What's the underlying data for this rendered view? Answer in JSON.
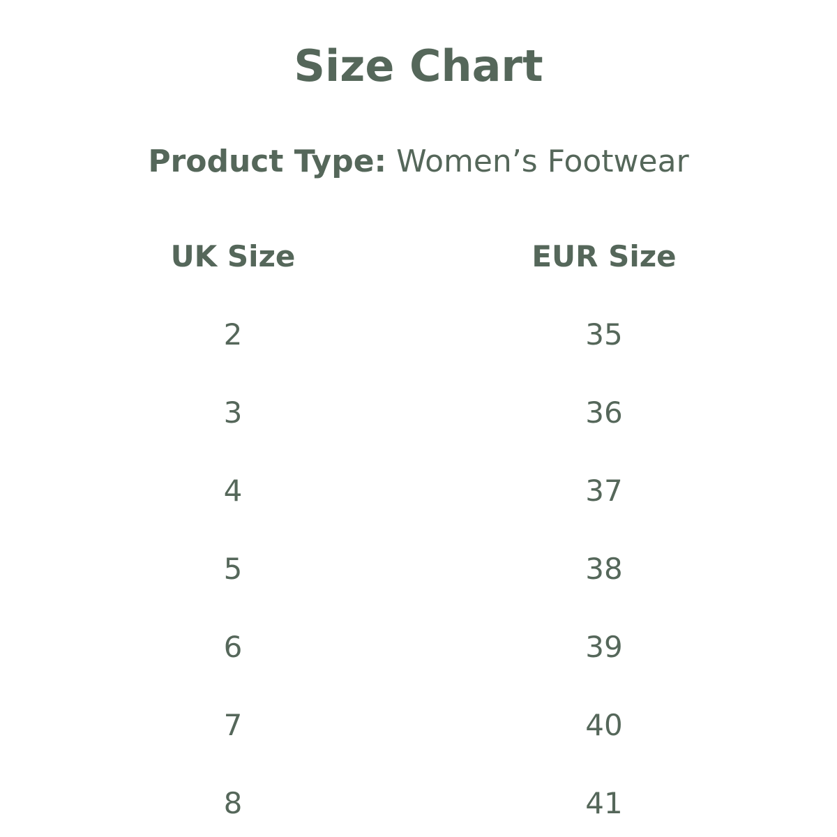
{
  "title": "Size Chart",
  "product_type": {
    "label": "Product Type:",
    "value": "Women’s Footwear"
  },
  "table": {
    "headers": [
      "UK Size",
      "EUR Size"
    ],
    "rows": [
      [
        "2",
        "35"
      ],
      [
        "3",
        "36"
      ],
      [
        "4",
        "37"
      ],
      [
        "5",
        "38"
      ],
      [
        "6",
        "39"
      ],
      [
        "7",
        "40"
      ],
      [
        "8",
        "41"
      ]
    ]
  },
  "colors": {
    "text": "#55675a",
    "background": "#ffffff"
  }
}
